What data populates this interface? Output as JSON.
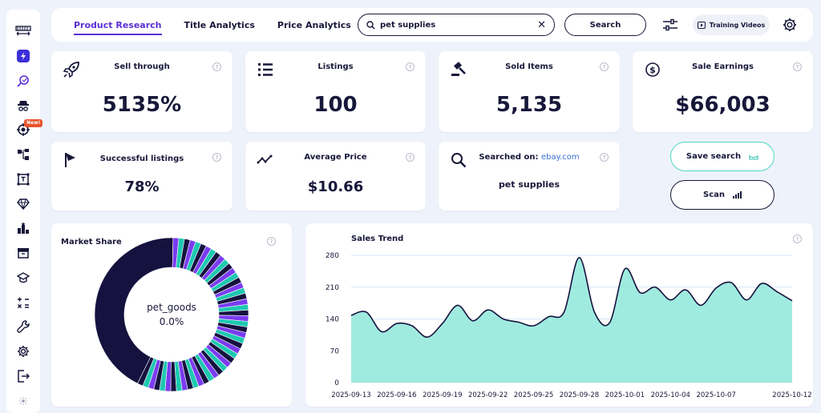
{
  "tabs": [
    {
      "label": "Product Research",
      "active": true
    },
    {
      "label": "Title Analytics",
      "active": false
    },
    {
      "label": "Price Analytics",
      "active": false
    }
  ],
  "search": {
    "value": "pet supplies",
    "button_label": "Search"
  },
  "training": {
    "label": "Training Videos"
  },
  "sidebar": {
    "new_badge": "New!"
  },
  "stats": {
    "sell_through": {
      "title": "Sell through",
      "value": "5135%"
    },
    "listings": {
      "title": "Listings",
      "value": "100"
    },
    "sold_items": {
      "title": "Sold Items",
      "value": "5,135"
    },
    "sale_earnings": {
      "title": "Sale Earnings",
      "value": "$66,003"
    },
    "successful_listings": {
      "title": "Successful listings",
      "value": "78%"
    },
    "average_price": {
      "title": "Average Price",
      "value": "$10.66"
    },
    "searched_on": {
      "title": "Searched on:",
      "site": "ebay.com",
      "query": "pet supplies"
    }
  },
  "actions": {
    "save_label": "Save search",
    "scan_label": "Scan"
  },
  "market_share": {
    "title": "Market Share",
    "center_name": "pet_goods",
    "center_value": "0.0%",
    "colors": [
      "#16123f",
      "#7b3cf0",
      "#1ec9b1"
    ]
  },
  "chart_data": {
    "type": "area",
    "title": "Sales Trend",
    "ylim": [
      0,
      280
    ],
    "yticks": [
      0,
      70,
      140,
      210,
      280
    ],
    "xtick_labels": [
      "2025-09-13",
      "2025-09-16",
      "2025-09-19",
      "2025-09-22",
      "2025-09-25",
      "2025-09-28",
      "2025-10-01",
      "2025-10-04",
      "2025-10-07",
      "2025-10-12"
    ],
    "grid": true,
    "color": "#8fe8d9",
    "x": [
      "2025-09-13",
      "2025-09-14",
      "2025-09-15",
      "2025-09-16",
      "2025-09-17",
      "2025-09-18",
      "2025-09-19",
      "2025-09-20",
      "2025-09-21",
      "2025-09-22",
      "2025-09-23",
      "2025-09-24",
      "2025-09-25",
      "2025-09-26",
      "2025-09-27",
      "2025-09-28",
      "2025-09-29",
      "2025-09-30",
      "2025-10-01",
      "2025-10-02",
      "2025-10-03",
      "2025-10-04",
      "2025-10-05",
      "2025-10-06",
      "2025-10-07",
      "2025-10-08",
      "2025-10-09",
      "2025-10-10",
      "2025-10-11",
      "2025-10-12"
    ],
    "values": [
      148,
      155,
      112,
      130,
      125,
      100,
      130,
      170,
      136,
      160,
      140,
      133,
      125,
      145,
      155,
      275,
      155,
      132,
      250,
      198,
      210,
      182,
      204,
      170,
      208,
      220,
      182,
      218,
      200,
      180
    ]
  }
}
